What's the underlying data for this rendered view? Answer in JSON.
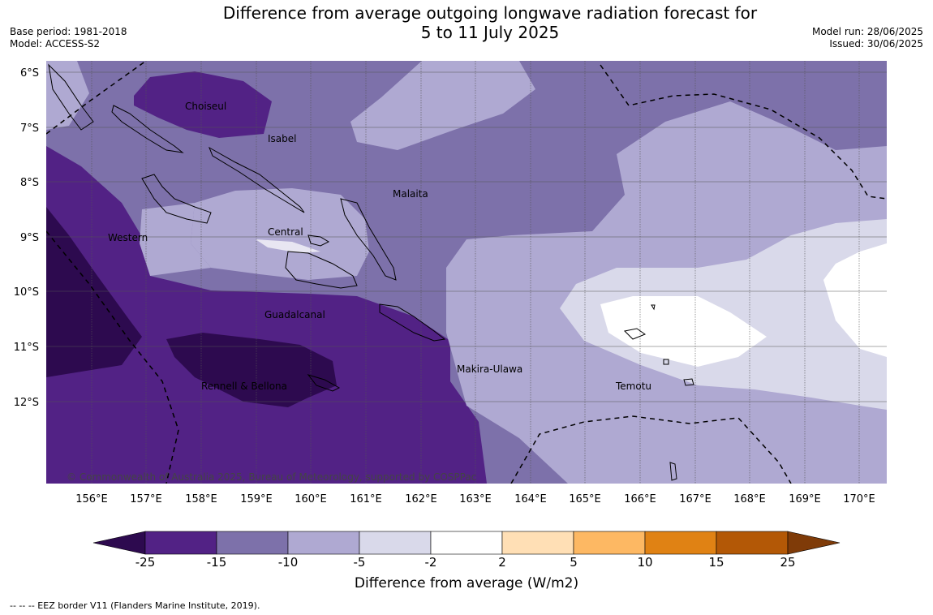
{
  "title": {
    "line1": "Difference from average outgoing longwave radiation forecast for",
    "line2": "5 to 11 July 2025"
  },
  "meta_left": {
    "base_period": "Base period: 1981-2018",
    "model": "Model: ACCESS-S2"
  },
  "meta_right": {
    "model_run": "Model run: 28/06/2025",
    "issued": "Issued: 30/06/2025"
  },
  "map": {
    "lat_labels": [
      "6°S",
      "7°S",
      "8°S",
      "9°S",
      "10°S",
      "11°S",
      "12°S"
    ],
    "lon_labels": [
      "156°E",
      "157°E",
      "158°E",
      "159°E",
      "160°E",
      "161°E",
      "162°E",
      "163°E",
      "164°E",
      "165°E",
      "166°E",
      "167°E",
      "168°E",
      "169°E",
      "170°E"
    ],
    "places": [
      "Choiseul",
      "Isabel",
      "Malaita",
      "Central",
      "Western",
      "Guadalcanal",
      "Makira-Ulawa",
      "Temotu",
      "Rennell & Bellona"
    ],
    "copyright": "© Commonwealth of Australia 2025, Bureau of Meteorology, supported by COSPPac"
  },
  "colorbar": {
    "label": "Difference from average (W/m2)",
    "ticks": [
      "-25",
      "-15",
      "-10",
      "-5",
      "-2",
      "2",
      "5",
      "10",
      "15",
      "25"
    ],
    "colors": [
      "#2d0a4f",
      "#522285",
      "#7d71aa",
      "#afa9d2",
      "#d9d9ea",
      "#ffffff",
      "#ffdfb5",
      "#fdb863",
      "#e08214",
      "#b35806",
      "#7f3b08"
    ]
  },
  "footer": "--  --  -- EEZ border V11 (Flanders Marine Institute, 2019)."
}
